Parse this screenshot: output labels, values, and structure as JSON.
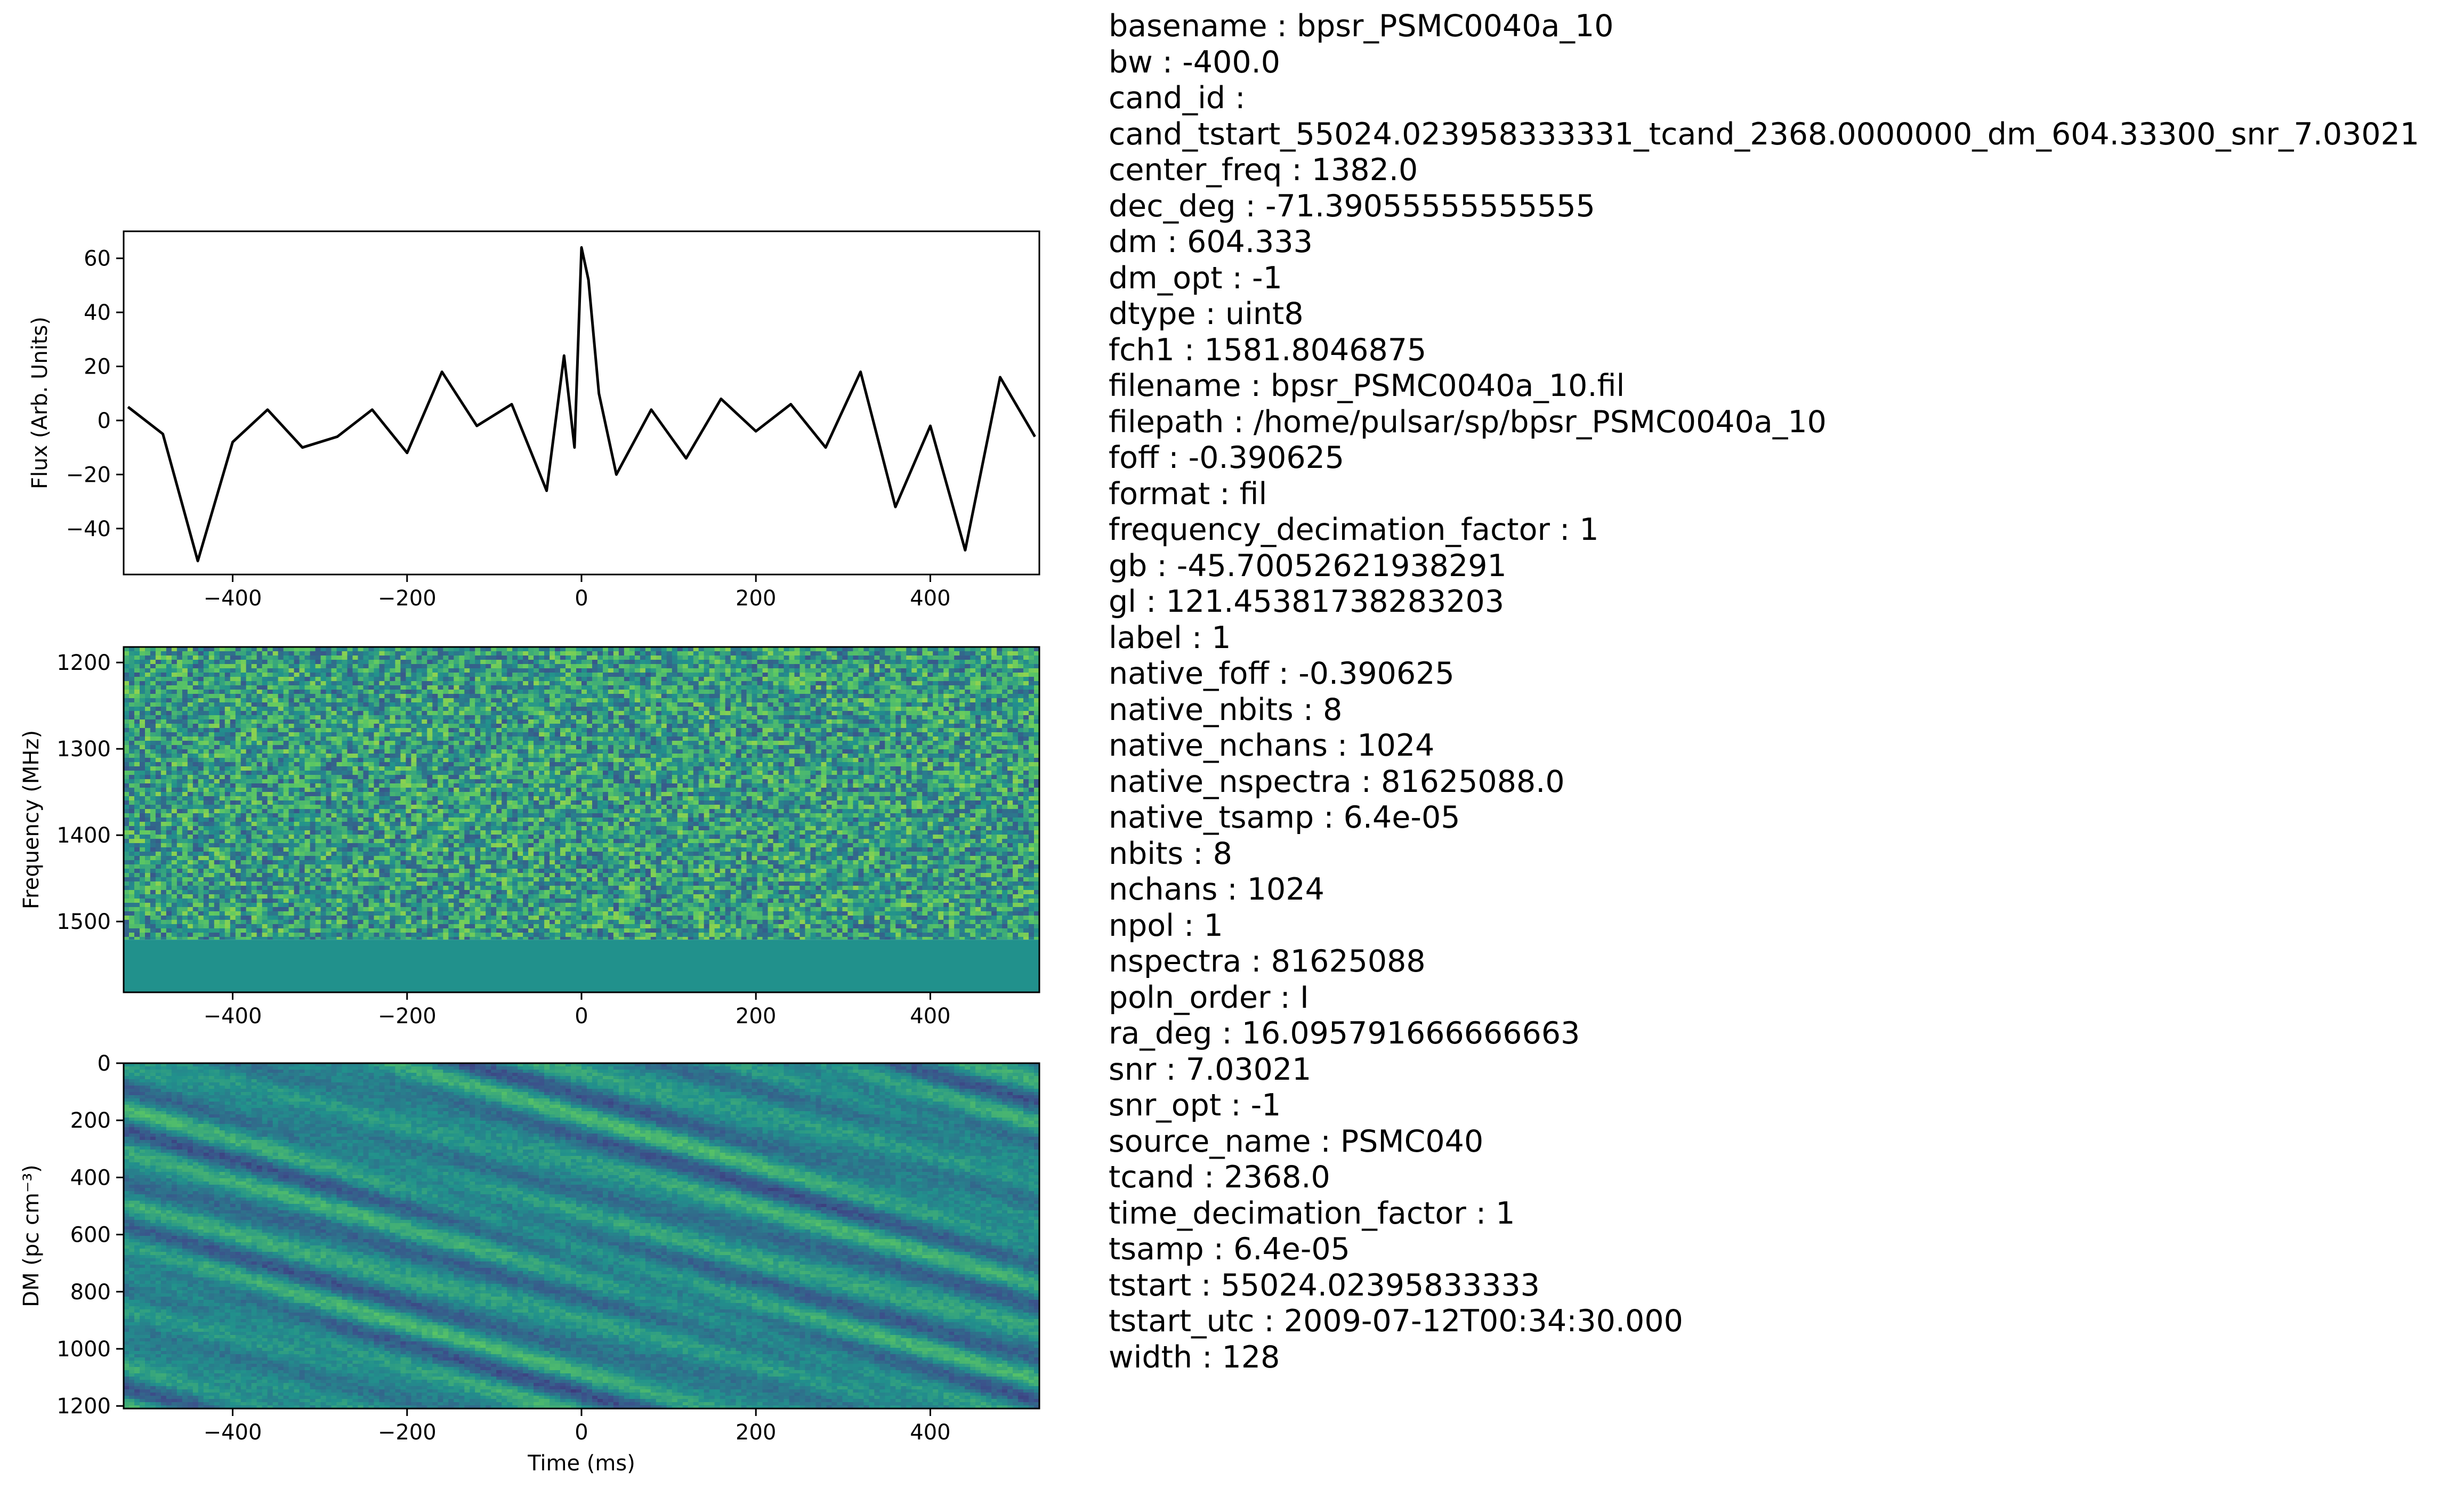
{
  "chart_data": [
    {
      "type": "line",
      "panel": "profile",
      "xlabel": "",
      "ylabel": "Flux (Arb. Units)",
      "xlim": [
        -525,
        525
      ],
      "ylim": [
        -57,
        70
      ],
      "xticks": [
        -400,
        -200,
        0,
        200,
        400
      ],
      "yticks": [
        -40,
        -20,
        0,
        20,
        40,
        60
      ],
      "line_color": "#000000",
      "series": [
        {
          "x": [
            -520,
            -480,
            -440,
            -400,
            -360,
            -320,
            -280,
            -240,
            -200,
            -160,
            -120,
            -80,
            -40,
            -20,
            -8,
            0,
            8,
            20,
            40,
            80,
            120,
            160,
            200,
            240,
            280,
            320,
            360,
            400,
            440,
            480,
            520
          ],
          "values": [
            5,
            -5,
            -52,
            -8,
            4,
            -10,
            -6,
            4,
            -12,
            18,
            -2,
            6,
            -26,
            24,
            -10,
            64,
            52,
            10,
            -20,
            4,
            -14,
            8,
            -4,
            6,
            -10,
            18,
            -32,
            -2,
            -48,
            16,
            -6
          ]
        }
      ]
    },
    {
      "type": "heatmap",
      "panel": "frequency-time",
      "xlabel": "",
      "ylabel": "Frequency (MHz)",
      "xlim": [
        -525,
        525
      ],
      "ylim": [
        1582,
        1182
      ],
      "xticks": [
        -400,
        -200,
        0,
        200,
        400
      ],
      "yticks": [
        1200,
        1300,
        1400,
        1500
      ],
      "flagged_band_start_mhz": 1521,
      "colormap": "viridis"
    },
    {
      "type": "heatmap",
      "panel": "dm-time",
      "xlabel": "Time (ms)",
      "ylabel": "DM (pc cm⁻³)",
      "xlim": [
        -525,
        525
      ],
      "ylim": [
        1209,
        0
      ],
      "xticks": [
        -400,
        -200,
        0,
        200,
        400
      ],
      "yticks": [
        0,
        200,
        400,
        600,
        800,
        1000,
        1200
      ],
      "colormap": "viridis"
    }
  ],
  "params": [
    "basename : bpsr_PSMC0040a_10",
    "bw : -400.0",
    "cand_id :",
    "cand_tstart_55024.023958333331_tcand_2368.0000000_dm_604.33300_snr_7.03021",
    "center_freq : 1382.0",
    "dec_deg : -71.39055555555555",
    "dm : 604.333",
    "dm_opt : -1",
    "dtype : uint8",
    "fch1 : 1581.8046875",
    "filename : bpsr_PSMC0040a_10.fil",
    "filepath : /home/pulsar/sp/bpsr_PSMC0040a_10",
    "foff : -0.390625",
    "format : fil",
    "frequency_decimation_factor : 1",
    "gb : -45.70052621938291",
    "gl : 121.45381738283203",
    "label : 1",
    "native_foff : -0.390625",
    "native_nbits : 8",
    "native_nchans : 1024",
    "native_nspectra : 81625088.0",
    "native_tsamp : 6.4e-05",
    "nbits : 8",
    "nchans : 1024",
    "npol : 1",
    "nspectra : 81625088",
    "poln_order : I",
    "ra_deg : 16.095791666666663",
    "snr : 7.03021",
    "snr_opt : -1",
    "source_name : PSMC040",
    "tcand : 2368.0",
    "time_decimation_factor : 1",
    "tsamp : 6.4e-05",
    "tstart : 55024.02395833333",
    "tstart_utc : 2009-07-12T00:34:30.000",
    "width : 128"
  ]
}
